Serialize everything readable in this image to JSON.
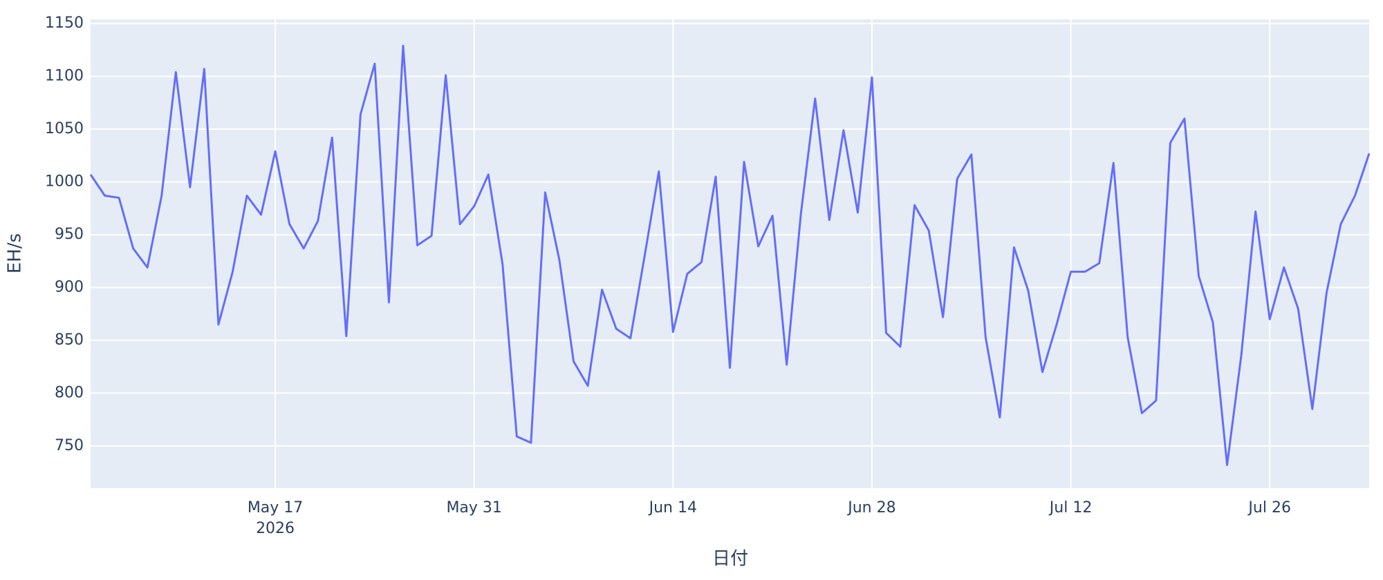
{
  "chart_data": {
    "type": "line",
    "x_label": "日付",
    "y_label": "EH/s",
    "color": "#636efa",
    "grid": true,
    "x": [
      "2026-05-04",
      "2026-05-05",
      "2026-05-06",
      "2026-05-07",
      "2026-05-08",
      "2026-05-09",
      "2026-05-10",
      "2026-05-11",
      "2026-05-12",
      "2026-05-13",
      "2026-05-14",
      "2026-05-15",
      "2026-05-16",
      "2026-05-17",
      "2026-05-18",
      "2026-05-19",
      "2026-05-20",
      "2026-05-21",
      "2026-05-22",
      "2026-05-23",
      "2026-05-24",
      "2026-05-25",
      "2026-05-26",
      "2026-05-27",
      "2026-05-28",
      "2026-05-29",
      "2026-05-30",
      "2026-05-31",
      "2026-06-01",
      "2026-06-02",
      "2026-06-03",
      "2026-06-04",
      "2026-06-05",
      "2026-06-06",
      "2026-06-07",
      "2026-06-08",
      "2026-06-09",
      "2026-06-10",
      "2026-06-11",
      "2026-06-12",
      "2026-06-13",
      "2026-06-14",
      "2026-06-15",
      "2026-06-16",
      "2026-06-17",
      "2026-06-18",
      "2026-06-19",
      "2026-06-20",
      "2026-06-21",
      "2026-06-22",
      "2026-06-23",
      "2026-06-24",
      "2026-06-25",
      "2026-06-26",
      "2026-06-27",
      "2026-06-28",
      "2026-06-29",
      "2026-06-30",
      "2026-07-01",
      "2026-07-02",
      "2026-07-03",
      "2026-07-04",
      "2026-07-05",
      "2026-07-06",
      "2026-07-07",
      "2026-07-08",
      "2026-07-09",
      "2026-07-10",
      "2026-07-11",
      "2026-07-12",
      "2026-07-13",
      "2026-07-14",
      "2026-07-15",
      "2026-07-16",
      "2026-07-17",
      "2026-07-18",
      "2026-07-19",
      "2026-07-20",
      "2026-07-21",
      "2026-07-22",
      "2026-07-23",
      "2026-07-24",
      "2026-07-25",
      "2026-07-26",
      "2026-07-27",
      "2026-07-28",
      "2026-07-29",
      "2026-07-30",
      "2026-07-31",
      "2026-08-01",
      "2026-08-02"
    ],
    "values": [
      1007,
      987,
      985,
      937,
      919,
      987,
      1104,
      995,
      1107,
      865,
      915,
      987,
      969,
      1029,
      960,
      937,
      963,
      1042,
      854,
      1064,
      1112,
      886,
      1129,
      940,
      949,
      1101,
      960,
      977,
      1007,
      922,
      759,
      753,
      990,
      926,
      830,
      807,
      898,
      861,
      852,
      930,
      1010,
      858,
      913,
      924,
      1005,
      824,
      1019,
      939,
      968,
      827,
      970,
      1079,
      964,
      1049,
      971,
      1099,
      857,
      844,
      978,
      954,
      872,
      1003,
      1026,
      853,
      777,
      938,
      897,
      820,
      865,
      915,
      915,
      923,
      1018,
      853,
      781,
      793,
      1037,
      1060,
      911,
      867,
      732,
      836,
      972,
      870,
      919,
      880,
      785,
      895,
      960,
      987,
      1027
    ],
    "xlim": [
      "2026-05-04",
      "2026-08-02"
    ],
    "xticks": [
      {
        "value": "2026-05-17",
        "label": "May 17\n2026"
      },
      {
        "value": "2026-05-31",
        "label": "May 31"
      },
      {
        "value": "2026-06-14",
        "label": "Jun 14"
      },
      {
        "value": "2026-06-28",
        "label": "Jun 28"
      },
      {
        "value": "2026-07-12",
        "label": "Jul 12"
      },
      {
        "value": "2026-07-26",
        "label": "Jul 26"
      }
    ],
    "ylim": [
      710,
      1154
    ],
    "yticks": [
      750,
      800,
      850,
      900,
      950,
      1000,
      1050,
      1100,
      1150
    ]
  }
}
